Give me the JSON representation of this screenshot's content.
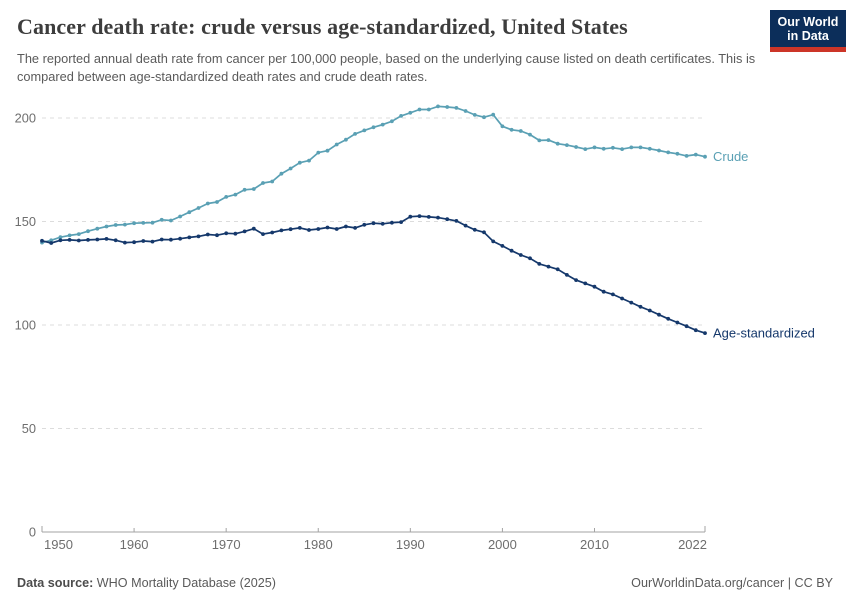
{
  "header": {
    "title": "Cancer death rate: crude versus age-standardized, United States",
    "subtitle": "The reported annual death rate from cancer per 100,000 people, based on the underlying cause listed on death certificates. This is compared between age-standardized death rates and crude death rates.",
    "logo": {
      "line1": "Our World",
      "line2": "in Data"
    }
  },
  "footer": {
    "source_label": "Data source:",
    "source_value": " WHO Mortality Database (2025)",
    "credit_link": "OurWorldinData.org/cancer",
    "credit_suffix": " | CC BY"
  },
  "colors": {
    "crude": "#5aa0b4",
    "age_standardized": "#15386b",
    "grid": "#dcdcdc",
    "axis": "#a3a3a3",
    "tick_text": "#6e6e6e",
    "logo_bg": "#0c2e5a",
    "logo_red": "#cc3528"
  },
  "chart_data": {
    "type": "line",
    "title": "Cancer death rate: crude versus age-standardized, United States",
    "xlabel": "",
    "ylabel": "",
    "x_ticks": [
      1950,
      1960,
      1970,
      1980,
      1990,
      2000,
      2010,
      2022
    ],
    "y_ticks": [
      0,
      50,
      100,
      150,
      200
    ],
    "ylim": [
      0,
      210
    ],
    "grid": "horizontal-dashed",
    "legend": "end-of-line-labels",
    "x": [
      1950,
      1951,
      1952,
      1953,
      1954,
      1955,
      1956,
      1957,
      1958,
      1959,
      1960,
      1961,
      1962,
      1963,
      1964,
      1965,
      1966,
      1967,
      1968,
      1969,
      1970,
      1971,
      1972,
      1973,
      1974,
      1975,
      1976,
      1977,
      1978,
      1979,
      1980,
      1981,
      1982,
      1983,
      1984,
      1985,
      1986,
      1987,
      1988,
      1989,
      1990,
      1991,
      1992,
      1993,
      1994,
      1995,
      1996,
      1997,
      1998,
      1999,
      2000,
      2001,
      2002,
      2003,
      2004,
      2005,
      2006,
      2007,
      2008,
      2009,
      2010,
      2011,
      2012,
      2013,
      2014,
      2015,
      2016,
      2017,
      2018,
      2019,
      2020,
      2021,
      2022
    ],
    "series": [
      {
        "name": "Crude",
        "color": "#5aa0b4",
        "values": [
          139.8,
          140.9,
          142.4,
          143.3,
          143.9,
          145.3,
          146.5,
          147.6,
          148.3,
          148.5,
          149.2,
          149.3,
          149.4,
          150.8,
          150.5,
          152.4,
          154.5,
          156.5,
          158.7,
          159.4,
          161.9,
          163.0,
          165.3,
          165.7,
          168.6,
          169.3,
          173.1,
          175.6,
          178.4,
          179.4,
          183.3,
          184.2,
          187.2,
          189.5,
          192.3,
          194.0,
          195.5,
          196.8,
          198.4,
          201.0,
          202.5,
          204.1,
          204.1,
          205.6,
          205.3,
          204.9,
          203.4,
          201.5,
          200.4,
          201.6,
          196.0,
          194.3,
          193.7,
          192.0,
          189.2,
          189.3,
          187.6,
          186.9,
          186.0,
          185.0,
          185.8,
          185.1,
          185.6,
          185.0,
          185.8,
          185.8,
          185.1,
          184.3,
          183.4,
          182.7,
          181.7,
          182.3,
          181.3
        ]
      },
      {
        "name": "Age-standardized",
        "color": "#15386b",
        "values": [
          140.7,
          139.6,
          140.9,
          141.1,
          140.8,
          141.1,
          141.3,
          141.6,
          140.9,
          139.8,
          140.0,
          140.6,
          140.3,
          141.3,
          141.2,
          141.7,
          142.3,
          142.8,
          143.7,
          143.4,
          144.3,
          144.1,
          145.2,
          146.5,
          143.9,
          144.7,
          145.7,
          146.3,
          146.9,
          145.9,
          146.4,
          147.1,
          146.4,
          147.6,
          146.9,
          148.4,
          149.2,
          148.9,
          149.4,
          149.7,
          152.3,
          152.6,
          152.2,
          151.9,
          151.1,
          150.3,
          148.0,
          146.0,
          144.8,
          140.4,
          138.2,
          135.9,
          133.8,
          132.2,
          129.5,
          128.2,
          126.9,
          124.2,
          121.7,
          120.1,
          118.5,
          116.1,
          114.8,
          112.8,
          110.8,
          108.8,
          107.0,
          105.0,
          103.0,
          101.2,
          99.4,
          97.5,
          96.1
        ]
      }
    ]
  }
}
